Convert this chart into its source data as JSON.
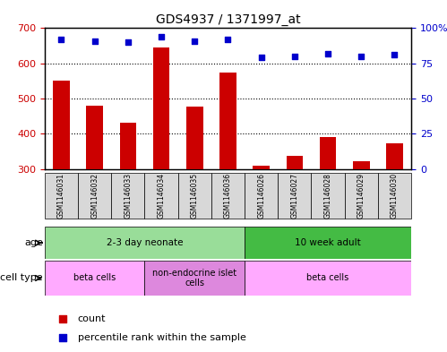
{
  "title": "GDS4937 / 1371997_at",
  "samples": [
    "GSM1146031",
    "GSM1146032",
    "GSM1146033",
    "GSM1146034",
    "GSM1146035",
    "GSM1146036",
    "GSM1146026",
    "GSM1146027",
    "GSM1146028",
    "GSM1146029",
    "GSM1146030"
  ],
  "counts": [
    550,
    480,
    432,
    645,
    477,
    575,
    308,
    337,
    390,
    323,
    372
  ],
  "percentiles": [
    92,
    91,
    90,
    94,
    91,
    92,
    79,
    80,
    82,
    80,
    81
  ],
  "ylim_left": [
    300,
    700
  ],
  "ylim_right": [
    0,
    100
  ],
  "yticks_left": [
    300,
    400,
    500,
    600,
    700
  ],
  "yticks_right": [
    0,
    25,
    50,
    75,
    100
  ],
  "bar_color": "#cc0000",
  "dot_color": "#0000cc",
  "bar_bottom": 300,
  "age_groups": [
    {
      "label": "2-3 day neonate",
      "start": 0,
      "end": 6,
      "color": "#99dd99"
    },
    {
      "label": "10 week adult",
      "start": 6,
      "end": 11,
      "color": "#44bb44"
    }
  ],
  "cell_type_groups": [
    {
      "label": "beta cells",
      "start": 0,
      "end": 3,
      "color": "#ffaaff"
    },
    {
      "label": "non-endocrine islet\ncells",
      "start": 3,
      "end": 6,
      "color": "#dd88dd"
    },
    {
      "label": "beta cells",
      "start": 6,
      "end": 11,
      "color": "#ffaaff"
    }
  ],
  "legend_count_label": "count",
  "legend_pct_label": "percentile rank within the sample",
  "grid_color": "#888888",
  "bg_color": "#ffffff",
  "plot_bg": "#f0f0f0"
}
